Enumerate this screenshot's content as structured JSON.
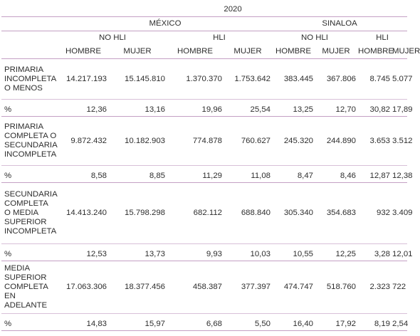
{
  "year": "2020",
  "regions": [
    "MÉXICO",
    "SINALOA"
  ],
  "groups": [
    "NO HLI",
    "HLI",
    "NO HLI",
    "HLI"
  ],
  "subheaders": [
    "HOMBRE",
    "MUJER",
    "HOMBRE",
    "MUJER",
    "HOMBRE",
    "MUJER",
    "HOMBRE",
    "MUJER"
  ],
  "rows": [
    {
      "label": "PRIMARIA INCOMPLETA O MENOS",
      "lines": [
        "PRIMARIA",
        "INCOMPLETA",
        "O MENOS"
      ],
      "values": [
        "14.217.193",
        "15.145.810",
        "1.370.370",
        "1.753.642",
        "383.445",
        "367.806",
        "8.745",
        "5.077"
      ],
      "pct_label": "%",
      "pct": [
        "12,36",
        "13,16",
        "19,96",
        "25,54",
        "13,25",
        "12,70",
        "30,82",
        "17,89"
      ]
    },
    {
      "label": "PRIMARIA COMPLETA O SECUNDARIA INCOMPLETA",
      "lines": [
        "PRIMARIA",
        "COMPLETA O",
        "SECUNDARIA",
        "INCOMPLETA"
      ],
      "values": [
        "9.872.432",
        "10.182.903",
        "774.878",
        "760.627",
        "245.320",
        "244.890",
        "3.653",
        "3.512"
      ],
      "pct_label": "%",
      "pct": [
        "8,58",
        "8,85",
        "11,29",
        "11,08",
        "8,47",
        "8,46",
        "12,87",
        "12,38"
      ]
    },
    {
      "label": "SECUNDARIA COMPLETA O MEDIA SUPERIOR INCOMPLETA",
      "lines": [
        "SECUNDARIA",
        "COMPLETA",
        "O MEDIA",
        "SUPERIOR",
        "INCOMPLETA"
      ],
      "values": [
        "14.413.240",
        "15.798.298",
        "682.112",
        "688.840",
        "305.340",
        "354.683",
        "932",
        "3.409"
      ],
      "pct_label": "%",
      "pct": [
        "12,53",
        "13,73",
        "9,93",
        "10,03",
        "10,55",
        "12,25",
        "3,28",
        "12,01"
      ]
    },
    {
      "label": "MEDIA SUPERIOR COMPLETA EN ADELANTE",
      "lines": [
        "MEDIA",
        "SUPERIOR",
        "COMPLETA",
        "EN",
        "ADELANTE"
      ],
      "values": [
        "17.063.306",
        "18.377.456",
        "458.387",
        "377.397",
        "474.747",
        "518.760",
        "2.323",
        "722"
      ],
      "pct_label": "%",
      "pct": [
        "14,83",
        "15,97",
        "6,68",
        "5,50",
        "16,40",
        "17,92",
        "8,19",
        "2,54"
      ]
    }
  ]
}
